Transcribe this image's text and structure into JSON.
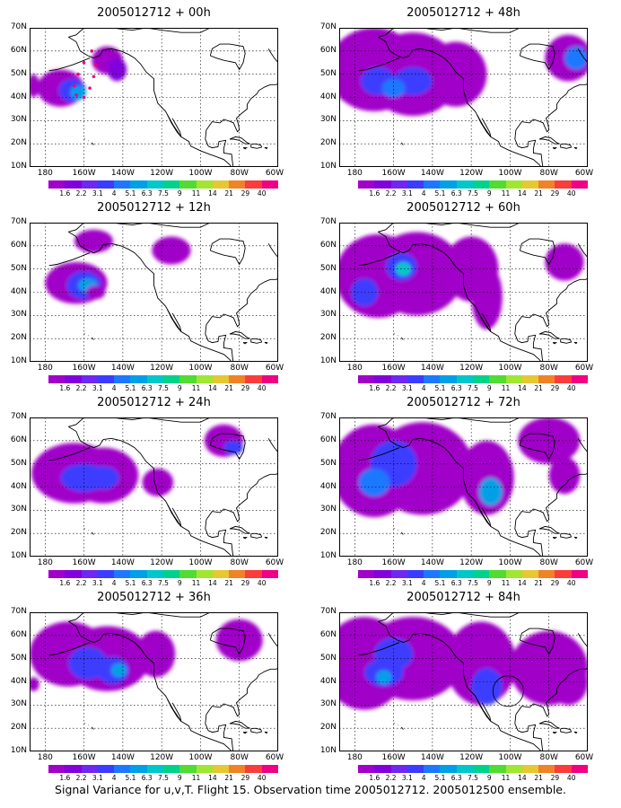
{
  "panels": [
    {
      "title": "2005012712 + 00h"
    },
    {
      "title": "2005012712 + 48h"
    },
    {
      "title": "2005012712 + 12h"
    },
    {
      "title": "2005012712 + 60h"
    },
    {
      "title": "2005012712 + 24h"
    },
    {
      "title": "2005012712 + 72h"
    },
    {
      "title": "2005012712 + 36h"
    },
    {
      "title": "2005012712 + 84h"
    }
  ],
  "lat_labels": [
    "70N",
    "60N",
    "50N",
    "40N",
    "30N",
    "20N",
    "10N"
  ],
  "lon_labels": [
    "180",
    "160W",
    "140W",
    "120W",
    "100W",
    "80W",
    "60W"
  ],
  "colorbar": {
    "labels": [
      "1.6",
      "2.2",
      "3.1",
      "4",
      "5.1",
      "6.3",
      "7.5",
      "9",
      "11",
      "14",
      "21",
      "29",
      "40"
    ],
    "colors": [
      "#a000c8",
      "#8200dc",
      "#6e28f0",
      "#3c3cff",
      "#1e78ff",
      "#00a0e6",
      "#00c8c8",
      "#00d28c",
      "#50dc32",
      "#a0e632",
      "#e6c832",
      "#f08228",
      "#fa3c3c",
      "#f00082"
    ]
  },
  "caption": "Signal Variance for u,v,T. Flight 15. Observation time 2005012712. 2005012500 ensemble.",
  "color_key": {
    "purple": "#a000c8",
    "blue": "#3c3cff",
    "cyan": "#00c8c8",
    "flight_track": "#f00082"
  }
}
